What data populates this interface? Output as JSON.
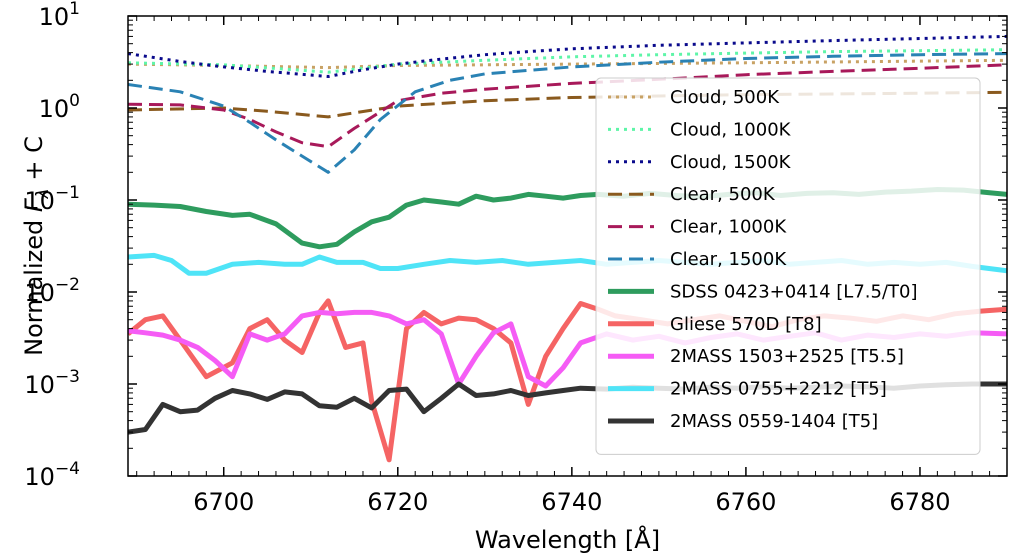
{
  "chart_data": {
    "type": "line",
    "xlabel": "Wavelength [Å]",
    "ylabel": "Normalized F_λ + C",
    "ylabel_parts": {
      "prefix": "Normalized ",
      "symbol": "F",
      "subscript": "λ",
      "suffix": " + C"
    },
    "xlim": [
      6689,
      6790
    ],
    "ylim": [
      0.0001,
      10
    ],
    "yscale": "log",
    "x_ticks": [
      6700,
      6720,
      6740,
      6760,
      6780
    ],
    "x_tick_labels": [
      "6700",
      "6720",
      "6740",
      "6760",
      "6780"
    ],
    "y_ticks": [
      {
        "value": 0.0001,
        "base": "10",
        "exp": "−4"
      },
      {
        "value": 0.001,
        "base": "10",
        "exp": "−3"
      },
      {
        "value": 0.01,
        "base": "10",
        "exp": "−2"
      },
      {
        "value": 0.1,
        "base": "10",
        "exp": "−1"
      },
      {
        "value": 1,
        "base": "10",
        "exp": "0"
      },
      {
        "value": 10,
        "base": "10",
        "exp": "1"
      }
    ],
    "grid": false,
    "legend_position": "right",
    "series": [
      {
        "name": "Cloud, 500K",
        "color": "#c8a264",
        "style": "dotted",
        "x": [
          6689,
          6700,
          6712,
          6720,
          6740,
          6760,
          6790
        ],
        "y": [
          3.0,
          2.9,
          2.75,
          2.9,
          3.0,
          3.1,
          3.3
        ]
      },
      {
        "name": "Cloud, 1000K",
        "color": "#5ef5a8",
        "style": "dotted",
        "x": [
          6689,
          6700,
          6712,
          6720,
          6730,
          6740,
          6750,
          6760,
          6770,
          6780,
          6790
        ],
        "y": [
          3.1,
          2.95,
          2.45,
          3.0,
          3.3,
          3.6,
          3.8,
          3.95,
          4.1,
          4.2,
          4.3
        ]
      },
      {
        "name": "Cloud, 1500K",
        "color": "#0a0a8c",
        "style": "dotted",
        "x": [
          6689,
          6695,
          6700,
          6705,
          6712,
          6716,
          6720,
          6725,
          6730,
          6735,
          6740,
          6750,
          6760,
          6770,
          6780,
          6790
        ],
        "y": [
          3.9,
          3.2,
          2.8,
          2.5,
          2.2,
          2.6,
          3.0,
          3.4,
          3.8,
          4.1,
          4.4,
          4.8,
          5.1,
          5.4,
          5.7,
          6.0
        ]
      },
      {
        "name": "Clear, 500K",
        "color": "#8a5a1e",
        "style": "dashed",
        "x": [
          6689,
          6700,
          6705,
          6712,
          6720,
          6730,
          6740,
          6750,
          6760,
          6770,
          6780,
          6790
        ],
        "y": [
          0.95,
          1.0,
          0.92,
          0.8,
          1.05,
          1.2,
          1.3,
          1.35,
          1.4,
          1.42,
          1.45,
          1.48
        ]
      },
      {
        "name": "Clear, 1000K",
        "color": "#a8195a",
        "style": "dashed",
        "x": [
          6689,
          6695,
          6700,
          6703,
          6706,
          6709,
          6712,
          6715,
          6720,
          6725,
          6730,
          6740,
          6750,
          6760,
          6770,
          6780,
          6790
        ],
        "y": [
          1.1,
          1.08,
          0.95,
          0.75,
          0.55,
          0.42,
          0.38,
          0.6,
          1.2,
          1.45,
          1.6,
          1.85,
          2.05,
          2.3,
          2.5,
          2.7,
          2.95
        ]
      },
      {
        "name": "Clear, 1500K",
        "color": "#2a82b4",
        "style": "dashed",
        "x": [
          6689,
          6695,
          6700,
          6703,
          6706,
          6709,
          6712,
          6715,
          6718,
          6722,
          6726,
          6730,
          6740,
          6750,
          6760,
          6770,
          6780,
          6790
        ],
        "y": [
          1.8,
          1.5,
          1.05,
          0.7,
          0.45,
          0.3,
          0.2,
          0.35,
          0.75,
          1.5,
          2.0,
          2.35,
          2.8,
          3.15,
          3.45,
          3.65,
          3.8,
          3.9
        ]
      },
      {
        "name": "SDSS 0423+0414 [L7.5/T0]",
        "color": "#2e9c5e",
        "style": "solid",
        "x": [
          6689,
          6692,
          6695,
          6698,
          6701,
          6703,
          6706,
          6709,
          6711,
          6713,
          6715,
          6717,
          6719,
          6721,
          6723,
          6725,
          6727,
          6729,
          6731,
          6733,
          6735,
          6737,
          6739,
          6741,
          6743,
          6746,
          6749,
          6752,
          6755,
          6758,
          6761,
          6764,
          6767,
          6770,
          6773,
          6776,
          6779,
          6782,
          6785,
          6788,
          6790
        ],
        "y": [
          0.09,
          0.088,
          0.085,
          0.075,
          0.068,
          0.07,
          0.055,
          0.034,
          0.031,
          0.033,
          0.045,
          0.058,
          0.065,
          0.088,
          0.1,
          0.095,
          0.09,
          0.11,
          0.1,
          0.105,
          0.115,
          0.11,
          0.105,
          0.112,
          0.115,
          0.11,
          0.118,
          0.112,
          0.108,
          0.115,
          0.12,
          0.112,
          0.118,
          0.12,
          0.115,
          0.122,
          0.125,
          0.13,
          0.128,
          0.12,
          0.115
        ]
      },
      {
        "name": "Gliese 570D [T8]",
        "color": "#f56464",
        "style": "solid",
        "x": [
          6689,
          6691,
          6693,
          6695,
          6698,
          6701,
          6703,
          6705,
          6707,
          6709,
          6711,
          6712,
          6714,
          6716,
          6717,
          6719,
          6721,
          6723,
          6725,
          6727,
          6729,
          6731,
          6733,
          6735,
          6737,
          6739,
          6741,
          6743,
          6745,
          6748,
          6751,
          6754,
          6757,
          6760,
          6763,
          6766,
          6769,
          6772,
          6775,
          6778,
          6781,
          6784,
          6787,
          6790
        ],
        "y": [
          0.0035,
          0.005,
          0.0055,
          0.003,
          0.0012,
          0.0017,
          0.004,
          0.005,
          0.003,
          0.0022,
          0.006,
          0.008,
          0.0025,
          0.0028,
          0.00065,
          0.00015,
          0.004,
          0.006,
          0.0045,
          0.0052,
          0.005,
          0.004,
          0.0028,
          0.0006,
          0.002,
          0.004,
          0.0075,
          0.0065,
          0.0055,
          0.005,
          0.0045,
          0.005,
          0.0055,
          0.0048,
          0.0042,
          0.005,
          0.0055,
          0.0052,
          0.0048,
          0.0055,
          0.005,
          0.0058,
          0.0062,
          0.0065
        ]
      },
      {
        "name": "2MASS 1503+2525 [T5.5]",
        "color": "#f55cf5",
        "style": "solid",
        "x": [
          6689,
          6691,
          6693,
          6695,
          6697,
          6699,
          6701,
          6703,
          6705,
          6707,
          6709,
          6711,
          6713,
          6715,
          6717,
          6719,
          6721,
          6723,
          6725,
          6727,
          6729,
          6731,
          6733,
          6735,
          6737,
          6739,
          6741,
          6744,
          6747,
          6750,
          6753,
          6756,
          6759,
          6762,
          6765,
          6768,
          6771,
          6774,
          6777,
          6780,
          6783,
          6786,
          6790
        ],
        "y": [
          0.0038,
          0.0036,
          0.0034,
          0.003,
          0.0025,
          0.0018,
          0.0012,
          0.0035,
          0.003,
          0.0035,
          0.0055,
          0.006,
          0.0058,
          0.006,
          0.006,
          0.0055,
          0.0045,
          0.005,
          0.0035,
          0.001,
          0.002,
          0.0036,
          0.0045,
          0.0012,
          0.00095,
          0.0015,
          0.0028,
          0.0035,
          0.003,
          0.0033,
          0.0028,
          0.0032,
          0.0035,
          0.003,
          0.0033,
          0.0036,
          0.003,
          0.0034,
          0.0032,
          0.0035,
          0.0033,
          0.0036,
          0.0035
        ]
      },
      {
        "name": "2MASS 0755+2212 [T5]",
        "color": "#4fe4f7",
        "style": "solid",
        "x": [
          6689,
          6692,
          6694,
          6696,
          6698,
          6701,
          6704,
          6707,
          6709,
          6711,
          6713,
          6716,
          6718,
          6720,
          6723,
          6726,
          6729,
          6732,
          6735,
          6738,
          6741,
          6744,
          6747,
          6750,
          6753,
          6756,
          6759,
          6762,
          6765,
          6768,
          6771,
          6774,
          6777,
          6780,
          6783,
          6786,
          6790
        ],
        "y": [
          0.024,
          0.025,
          0.022,
          0.016,
          0.016,
          0.02,
          0.021,
          0.02,
          0.02,
          0.024,
          0.021,
          0.021,
          0.018,
          0.018,
          0.02,
          0.022,
          0.021,
          0.022,
          0.02,
          0.021,
          0.022,
          0.02,
          0.021,
          0.022,
          0.021,
          0.02,
          0.021,
          0.022,
          0.02,
          0.021,
          0.022,
          0.02,
          0.021,
          0.02,
          0.021,
          0.019,
          0.017
        ]
      },
      {
        "name": "2MASS 0559-1404 [T5]",
        "color": "#333333",
        "style": "solid",
        "x": [
          6689,
          6691,
          6693,
          6695,
          6697,
          6699,
          6701,
          6703,
          6705,
          6707,
          6709,
          6711,
          6713,
          6715,
          6717,
          6719,
          6721,
          6723,
          6725,
          6727,
          6729,
          6731,
          6733,
          6735,
          6737,
          6739,
          6741,
          6744,
          6747,
          6750,
          6753,
          6756,
          6759,
          6762,
          6765,
          6768,
          6771,
          6774,
          6777,
          6780,
          6783,
          6786,
          6790
        ],
        "y": [
          0.0003,
          0.00032,
          0.0006,
          0.0005,
          0.00052,
          0.0007,
          0.00085,
          0.00078,
          0.00068,
          0.00082,
          0.00078,
          0.00058,
          0.00056,
          0.0007,
          0.00055,
          0.00085,
          0.00088,
          0.0005,
          0.0007,
          0.001,
          0.00075,
          0.00078,
          0.00085,
          0.00075,
          0.0008,
          0.00085,
          0.0009,
          0.00088,
          0.00092,
          0.0009,
          0.00088,
          0.00092,
          0.0009,
          0.00093,
          0.0009,
          0.00092,
          0.00095,
          0.00093,
          0.0009,
          0.00095,
          0.00098,
          0.001,
          0.001
        ]
      }
    ]
  }
}
